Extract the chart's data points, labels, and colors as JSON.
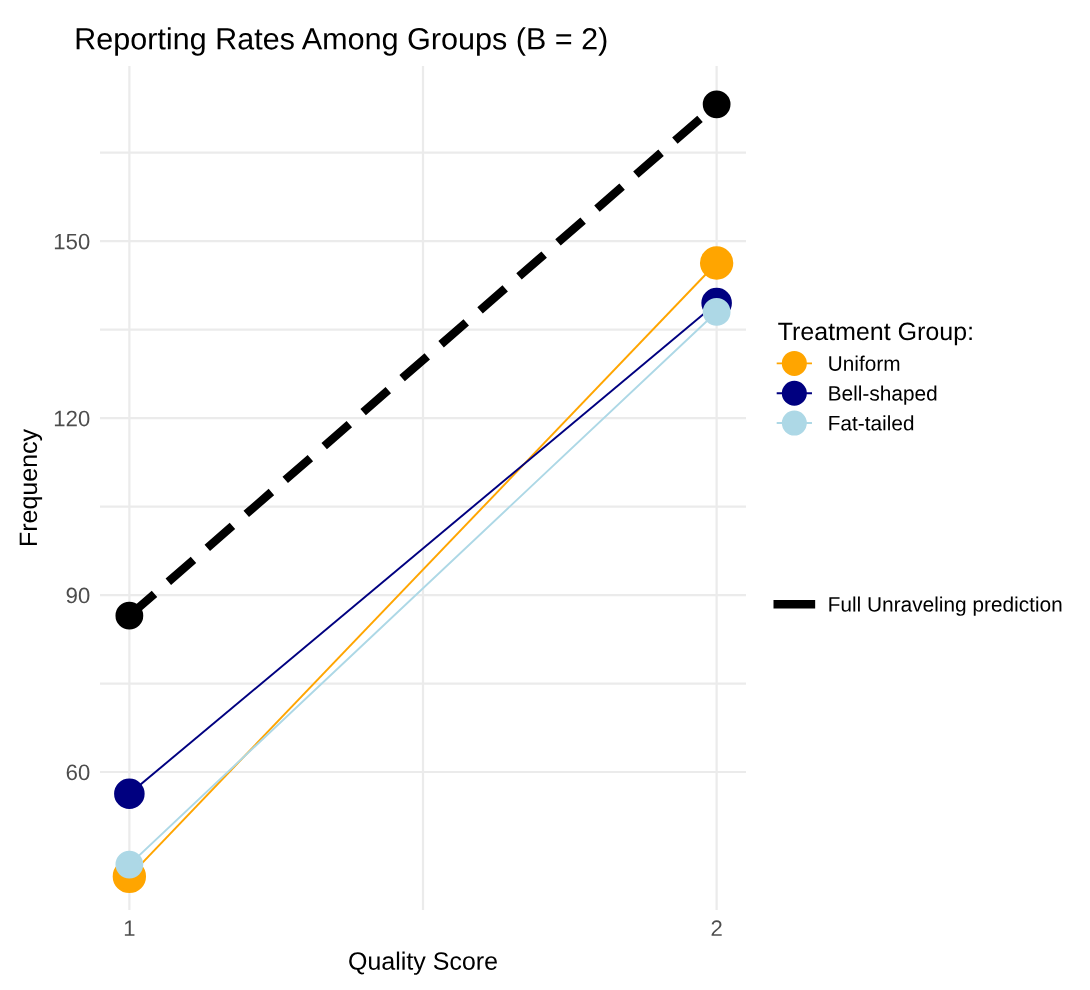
{
  "chart_data": {
    "type": "line",
    "title": "Reporting Rates Among Groups (B = 2)",
    "xlabel": "Quality Score",
    "ylabel": "Frequency",
    "legend_title": "Treatment Group:",
    "x": [
      1,
      2
    ],
    "series": [
      {
        "name": "Uniform",
        "color": "#ffa500",
        "values": [
          42.3,
          146.3
        ],
        "line_style": "solid",
        "marker": "circle"
      },
      {
        "name": "Bell-shaped",
        "color": "#000080",
        "values": [
          56.3,
          139.5
        ],
        "line_style": "solid",
        "marker": "circle"
      },
      {
        "name": "Fat-tailed",
        "color": "#add8e6",
        "values": [
          44.3,
          138
        ],
        "line_style": "solid",
        "marker": "circle"
      },
      {
        "name": "Full Unraveling prediction",
        "color": "#000000",
        "values": [
          86.5,
          173.2
        ],
        "line_style": "dashed",
        "marker": "circle"
      }
    ],
    "xlim": [
      0.95,
      2.05
    ],
    "xticks": [
      1,
      {
        "value": 1.5,
        "label": null
      },
      2
    ],
    "ylim": [
      36.6,
      179.7
    ],
    "yticks": [
      60,
      {
        "value": 75,
        "label": null
      },
      90,
      {
        "value": 105,
        "label": null
      },
      120,
      {
        "value": 135,
        "label": null
      },
      150,
      {
        "value": 165,
        "label": null
      }
    ],
    "grid": true,
    "legend": "right"
  }
}
